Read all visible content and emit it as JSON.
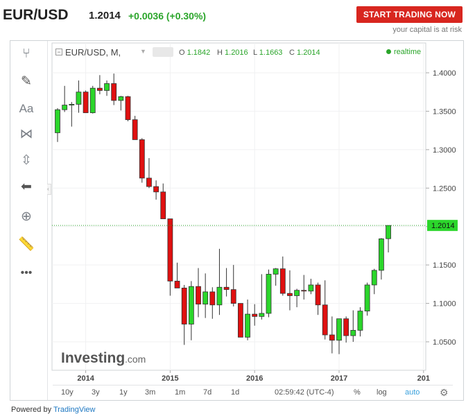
{
  "header": {
    "symbol": "EUR/USD",
    "price": "1.2014",
    "change": "+0.0036 (+0.30%)",
    "cta_label": "START TRADING NOW",
    "risk_text": "your capital is at risk"
  },
  "legend": {
    "title": "EUR/USD, M,",
    "ohlc": [
      {
        "k": "O",
        "v": "1.1842"
      },
      {
        "k": "H",
        "v": "1.2016"
      },
      {
        "k": "L",
        "v": "1.1663"
      },
      {
        "k": "C",
        "v": "1.2014"
      }
    ],
    "realtime": "realtime"
  },
  "watermark": "Investing",
  "watermark_suffix": ".com",
  "bottombar": {
    "ranges": [
      "10y",
      "3y",
      "1y",
      "3m",
      "1m",
      "7d",
      "1d"
    ],
    "time": "02:59:42 (UTC-4)",
    "pct": "%",
    "log": "log",
    "auto": "auto"
  },
  "footer": {
    "prefix": "Powered by",
    "brand": "TradingView"
  },
  "colors": {
    "up": "#2bd62b",
    "down": "#e01010",
    "accent": "#2aa52a",
    "last_price_bg": "#2bd62b"
  },
  "chart_data": {
    "type": "candlestick",
    "title": "EUR/USD, M,",
    "interval": "monthly",
    "ylim": [
      1.02,
      1.42
    ],
    "yticks": [
      1.05,
      1.1,
      1.15,
      1.2,
      1.25,
      1.3,
      1.35,
      1.4
    ],
    "yticks_labels": [
      "1.0500",
      "1.1000",
      "1.1500",
      "1.2000",
      "1.2500",
      "1.3000",
      "1.3500",
      "1.4000"
    ],
    "xticks_labels": [
      "2014",
      "2015",
      "2016",
      "2017",
      "201"
    ],
    "last_price": 1.2014,
    "last_price_label": "1.2014",
    "candles": [
      {
        "t": "2013-09",
        "o": 1.322,
        "h": 1.354,
        "l": 1.31,
        "c": 1.352
      },
      {
        "t": "2013-10",
        "o": 1.352,
        "h": 1.383,
        "l": 1.349,
        "c": 1.358
      },
      {
        "t": "2013-11",
        "o": 1.358,
        "h": 1.362,
        "l": 1.33,
        "c": 1.359
      },
      {
        "t": "2013-12",
        "o": 1.359,
        "h": 1.39,
        "l": 1.348,
        "c": 1.375
      },
      {
        "t": "2014-01",
        "o": 1.375,
        "h": 1.377,
        "l": 1.348,
        "c": 1.348
      },
      {
        "t": "2014-02",
        "o": 1.348,
        "h": 1.383,
        "l": 1.347,
        "c": 1.38
      },
      {
        "t": "2014-03",
        "o": 1.38,
        "h": 1.397,
        "l": 1.372,
        "c": 1.377
      },
      {
        "t": "2014-04",
        "o": 1.377,
        "h": 1.39,
        "l": 1.37,
        "c": 1.386
      },
      {
        "t": "2014-05",
        "o": 1.386,
        "h": 1.399,
        "l": 1.358,
        "c": 1.364
      },
      {
        "t": "2014-06",
        "o": 1.364,
        "h": 1.37,
        "l": 1.351,
        "c": 1.369
      },
      {
        "t": "2014-07",
        "o": 1.369,
        "h": 1.37,
        "l": 1.337,
        "c": 1.339
      },
      {
        "t": "2014-08",
        "o": 1.339,
        "h": 1.344,
        "l": 1.313,
        "c": 1.313
      },
      {
        "t": "2014-09",
        "o": 1.313,
        "h": 1.315,
        "l": 1.257,
        "c": 1.263
      },
      {
        "t": "2014-10",
        "o": 1.263,
        "h": 1.289,
        "l": 1.25,
        "c": 1.252
      },
      {
        "t": "2014-11",
        "o": 1.252,
        "h": 1.26,
        "l": 1.235,
        "c": 1.245
      },
      {
        "t": "2014-12",
        "o": 1.245,
        "h": 1.256,
        "l": 1.21,
        "c": 1.21
      },
      {
        "t": "2015-01",
        "o": 1.21,
        "h": 1.21,
        "l": 1.11,
        "c": 1.129
      },
      {
        "t": "2015-02",
        "o": 1.129,
        "h": 1.153,
        "l": 1.12,
        "c": 1.12
      },
      {
        "t": "2015-03",
        "o": 1.12,
        "h": 1.124,
        "l": 1.046,
        "c": 1.073
      },
      {
        "t": "2015-04",
        "o": 1.073,
        "h": 1.129,
        "l": 1.052,
        "c": 1.122
      },
      {
        "t": "2015-05",
        "o": 1.122,
        "h": 1.146,
        "l": 1.082,
        "c": 1.099
      },
      {
        "t": "2015-06",
        "o": 1.099,
        "h": 1.139,
        "l": 1.081,
        "c": 1.115
      },
      {
        "t": "2015-07",
        "o": 1.115,
        "h": 1.121,
        "l": 1.08,
        "c": 1.098
      },
      {
        "t": "2015-08",
        "o": 1.098,
        "h": 1.171,
        "l": 1.085,
        "c": 1.121
      },
      {
        "t": "2015-09",
        "o": 1.121,
        "h": 1.146,
        "l": 1.109,
        "c": 1.118
      },
      {
        "t": "2015-10",
        "o": 1.118,
        "h": 1.15,
        "l": 1.096,
        "c": 1.1
      },
      {
        "t": "2015-11",
        "o": 1.1,
        "h": 1.1,
        "l": 1.056,
        "c": 1.056
      },
      {
        "t": "2015-12",
        "o": 1.056,
        "h": 1.105,
        "l": 1.052,
        "c": 1.086
      },
      {
        "t": "2016-01",
        "o": 1.086,
        "h": 1.099,
        "l": 1.071,
        "c": 1.083
      },
      {
        "t": "2016-02",
        "o": 1.083,
        "h": 1.138,
        "l": 1.079,
        "c": 1.087
      },
      {
        "t": "2016-03",
        "o": 1.087,
        "h": 1.144,
        "l": 1.082,
        "c": 1.138
      },
      {
        "t": "2016-04",
        "o": 1.138,
        "h": 1.146,
        "l": 1.123,
        "c": 1.145
      },
      {
        "t": "2016-05",
        "o": 1.145,
        "h": 1.161,
        "l": 1.11,
        "c": 1.113
      },
      {
        "t": "2016-06",
        "o": 1.113,
        "h": 1.143,
        "l": 1.091,
        "c": 1.11
      },
      {
        "t": "2016-07",
        "o": 1.11,
        "h": 1.119,
        "l": 1.095,
        "c": 1.117
      },
      {
        "t": "2016-08",
        "o": 1.117,
        "h": 1.137,
        "l": 1.105,
        "c": 1.116
      },
      {
        "t": "2016-09",
        "o": 1.116,
        "h": 1.132,
        "l": 1.112,
        "c": 1.124
      },
      {
        "t": "2016-10",
        "o": 1.124,
        "h": 1.127,
        "l": 1.085,
        "c": 1.098
      },
      {
        "t": "2016-11",
        "o": 1.098,
        "h": 1.13,
        "l": 1.053,
        "c": 1.059
      },
      {
        "t": "2016-12",
        "o": 1.059,
        "h": 1.083,
        "l": 1.035,
        "c": 1.052
      },
      {
        "t": "2017-01",
        "o": 1.052,
        "h": 1.079,
        "l": 1.034,
        "c": 1.08
      },
      {
        "t": "2017-02",
        "o": 1.08,
        "h": 1.083,
        "l": 1.049,
        "c": 1.058
      },
      {
        "t": "2017-03",
        "o": 1.058,
        "h": 1.091,
        "l": 1.05,
        "c": 1.065
      },
      {
        "t": "2017-04",
        "o": 1.065,
        "h": 1.095,
        "l": 1.057,
        "c": 1.09
      },
      {
        "t": "2017-05",
        "o": 1.09,
        "h": 1.127,
        "l": 1.084,
        "c": 1.124
      },
      {
        "t": "2017-06",
        "o": 1.124,
        "h": 1.145,
        "l": 1.112,
        "c": 1.143
      },
      {
        "t": "2017-07",
        "o": 1.143,
        "h": 1.185,
        "l": 1.131,
        "c": 1.184
      },
      {
        "t": "2017-08",
        "o": 1.1842,
        "h": 1.2016,
        "l": 1.1663,
        "c": 1.2014
      }
    ]
  }
}
